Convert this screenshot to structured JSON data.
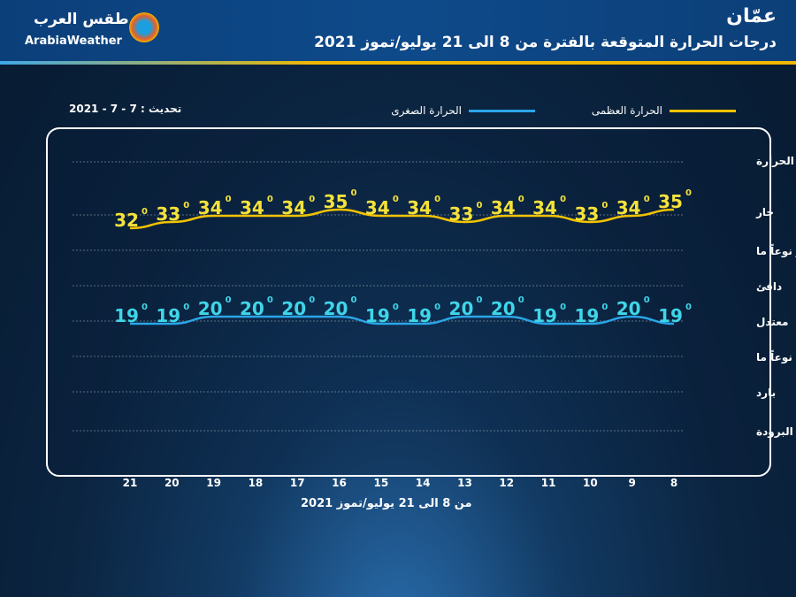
{
  "header": {
    "city": "عمّان",
    "title": "درجات الحرارة المتوقعة بالفترة من 8 الى 21 يوليو/تموز 2021"
  },
  "logo": {
    "arabic": "طقس العرب",
    "english": "ArabiaWeather"
  },
  "update": "تحديث : 7 - 7 - 2021",
  "colors": {
    "max": "#f2c200",
    "min": "#2aa6e8",
    "min_label": "#3fd6e8",
    "max_label": "#f5e23a"
  },
  "chart_data": {
    "type": "line",
    "title": "درجات الحرارة المتوقعة بالفترة من 8 الى 21 يوليو/تموز 2021",
    "xlabel": "من 8 الى 21 يوليو/تموز 2021",
    "x": [
      8,
      9,
      10,
      11,
      12,
      13,
      14,
      15,
      16,
      17,
      18,
      19,
      20,
      21
    ],
    "x_direction": "right-to-left",
    "categories_y": [
      "شديد الحرارة",
      "حار",
      "حار نوعاً ما",
      "دافئ",
      "معتدل",
      "بارد نوعاً ما",
      "بارد",
      "شديد البرودة"
    ],
    "unit_symbol": "0",
    "legend_position": "top",
    "grid": true,
    "series": [
      {
        "name": "الحرارة العظمى",
        "values": [
          35,
          34,
          33,
          34,
          34,
          33,
          34,
          34,
          35,
          34,
          34,
          34,
          33,
          32
        ]
      },
      {
        "name": "الحرارة الصغرى",
        "values": [
          19,
          20,
          19,
          19,
          20,
          20,
          19,
          19,
          20,
          20,
          20,
          20,
          19,
          19
        ]
      }
    ]
  }
}
